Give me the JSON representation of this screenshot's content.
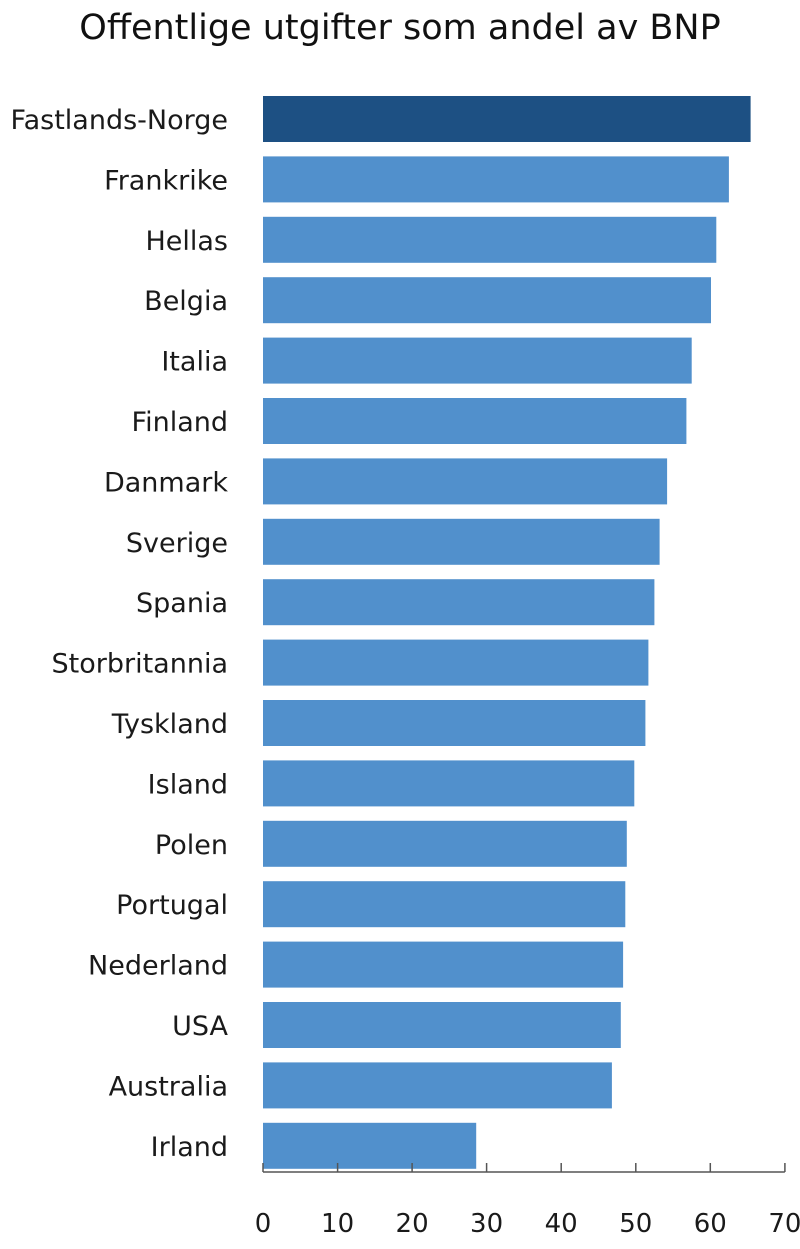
{
  "chart_data": {
    "type": "bar",
    "orientation": "horizontal",
    "title": "Offentlige utgifter som andel av BNP",
    "xlabel": "",
    "ylabel": "",
    "xlim": [
      0,
      70
    ],
    "xticks": [
      "0",
      "10",
      "20",
      "30",
      "40",
      "50",
      "60",
      "70"
    ],
    "categories": [
      "Fastlands-Norge",
      "Frankrike",
      "Hellas",
      "Belgia",
      "Italia",
      "Finland",
      "Danmark",
      "Sverige",
      "Spania",
      "Storbritannia",
      "Tyskland",
      "Island",
      "Polen",
      "Portugal",
      "Nederland",
      "USA",
      "Australia",
      "Irland"
    ],
    "values": [
      65.4,
      62.5,
      60.8,
      60.1,
      57.5,
      56.8,
      54.2,
      53.2,
      52.5,
      51.7,
      51.3,
      49.8,
      48.8,
      48.6,
      48.3,
      48.0,
      46.8,
      28.6
    ],
    "colors": {
      "highlight": "#1d5083",
      "bar": "#5190cc",
      "axis": "#555555"
    },
    "highlight_index": 0,
    "grid": false,
    "legend": "none"
  }
}
